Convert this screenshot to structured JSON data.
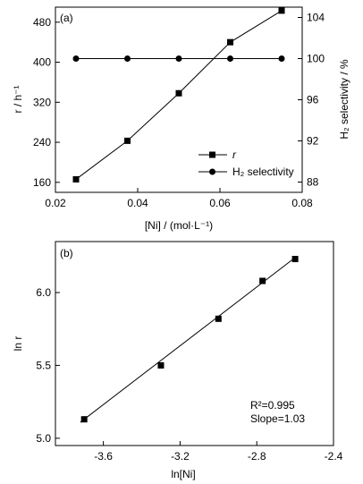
{
  "chart_data": [
    {
      "type": "line",
      "panel_label": "(a)",
      "x": [
        0.025,
        0.0375,
        0.05,
        0.0625,
        0.075
      ],
      "xlim": [
        0.02,
        0.08
      ],
      "xticks": [
        "0.02",
        "0.04",
        "0.06",
        "0.08"
      ],
      "xlabel": "[Ni] / (mol·L⁻¹)",
      "ylabel_left": "r / h⁻¹",
      "ylim_left": [
        140,
        510
      ],
      "yticks_left": [
        "160",
        "240",
        "320",
        "400",
        "480"
      ],
      "ylabel_right": "H₂ selectivity / %",
      "ylim_right": [
        87,
        105
      ],
      "yticks_right": [
        "88",
        "92",
        "96",
        "100",
        "104"
      ],
      "legend": {
        "placement": "lower-right",
        "entries": [
          "r",
          "H₂ selectivity"
        ]
      },
      "series": [
        {
          "name": "r",
          "axis": "left",
          "marker": "square",
          "values": [
            166,
            243,
            338,
            440,
            503
          ]
        },
        {
          "name": "H₂ selectivity",
          "axis": "right",
          "marker": "circle",
          "values": [
            100,
            100,
            100,
            100,
            100
          ]
        }
      ]
    },
    {
      "type": "scatter",
      "panel_label": "(b)",
      "x": [
        -3.7,
        -3.3,
        -3.0,
        -2.77,
        -2.6
      ],
      "y": [
        5.13,
        5.5,
        5.82,
        6.08,
        6.23
      ],
      "fit_line": {
        "x": [
          -3.72,
          -2.6
        ],
        "y": [
          5.11,
          6.24
        ]
      },
      "xlim": [
        -3.85,
        -2.4
      ],
      "xticks": [
        "-3.6",
        "-3.2",
        "-2.8",
        "-2.4"
      ],
      "xlabel": "ln[Ni]",
      "ylim": [
        4.95,
        6.35
      ],
      "yticks": [
        "5.0",
        "5.5",
        "6.0"
      ],
      "ylabel": "ln r",
      "annotations": [
        "R²=0.995",
        "Slope=1.03"
      ]
    }
  ]
}
